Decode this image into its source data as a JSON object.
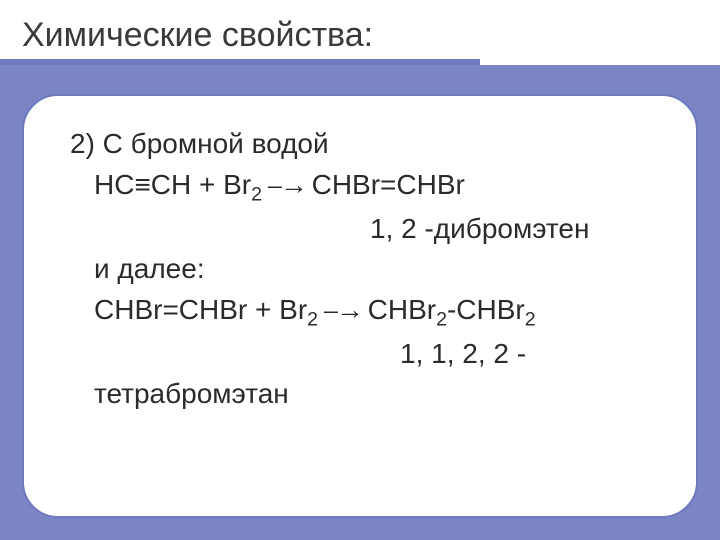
{
  "colors": {
    "background": "#7b85c6",
    "card_border": "#6f79bf",
    "card_bg": "#ffffff",
    "text": "#2b2b2b",
    "rule": "#6f79bf"
  },
  "typography": {
    "title_fontsize": 34,
    "body_fontsize": 28,
    "font_family": "Arial"
  },
  "header": {
    "title": "Химические свойства:"
  },
  "body": {
    "item_label": "2) С бромной водой",
    "reaction1_lhs": "HC≡CH  +  Br",
    "reaction1_sub1": "2",
    "reaction1_arrow": "  ⎯→  ",
    "reaction1_rhs": "CHBr=CHBr",
    "product1_name": "1, 2 -дибромэтен",
    "continuation": "и далее:",
    "reaction2_lhs": "CHBr=CHBr  +  Br",
    "reaction2_sub1": "2",
    "reaction2_arrow": "  ⎯→   ",
    "reaction2_rhs_a": "CHBr",
    "reaction2_rhs_sub_a": "2",
    "reaction2_rhs_dash": "-CHBr",
    "reaction2_rhs_sub_b": "2",
    "product2_name_line1": "1, 1, 2, 2 -",
    "product2_name_line2": "тетрабромэтан"
  }
}
